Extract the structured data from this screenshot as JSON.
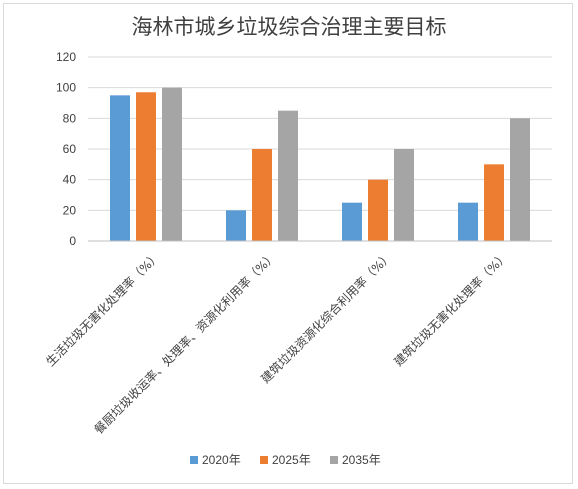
{
  "chart_data": {
    "type": "bar",
    "title": "海林市城乡垃圾综合治理主要目标",
    "categories": [
      "生活垃圾无害化处理率（%）",
      "餐厨垃圾收运率、处理率、资源化利用率（%）",
      "建筑垃圾资源化综合利用率（%）",
      "建筑垃圾无害化处理率（%）"
    ],
    "series": [
      {
        "name": "2020年",
        "color": "#5b9bd5",
        "values": [
          95,
          20,
          25,
          25
        ]
      },
      {
        "name": "2025年",
        "color": "#ed7d31",
        "values": [
          97,
          60,
          40,
          50
        ]
      },
      {
        "name": "2035年",
        "color": "#a5a5a5",
        "values": [
          100,
          85,
          60,
          80
        ]
      }
    ],
    "ylim": [
      0,
      120
    ],
    "yticks": [
      0,
      20,
      40,
      60,
      80,
      100,
      120
    ],
    "grid": true,
    "legend_position": "bottom"
  }
}
